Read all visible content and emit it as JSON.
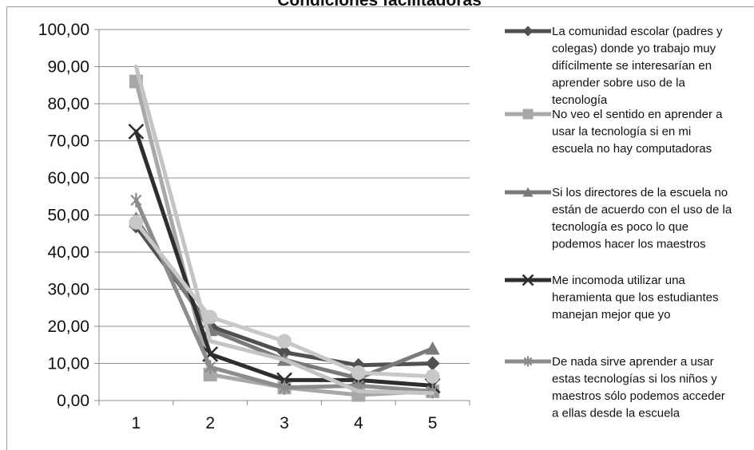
{
  "chart_data": {
    "type": "line",
    "title": "Condiciones facilitadoras",
    "categories": [
      "1",
      "2",
      "3",
      "4",
      "5"
    ],
    "ylim": [
      0,
      100
    ],
    "yticks": [
      "0,00",
      "10,00",
      "20,00",
      "30,00",
      "40,00",
      "50,00",
      "60,00",
      "70,00",
      "80,00",
      "90,00",
      "100,00"
    ],
    "grid": true,
    "legend_position": "right",
    "series": [
      {
        "name": "La comunidad escolar (padres y colegas) donde yo trabajo muy difícilmente se interesarían en aprender sobre uso de la tecnología",
        "legend_lines": [
          "La comunidad escolar (padres y",
          "colegas) donde yo trabajo muy",
          "difícilmente se interesarían en",
          "aprender sobre uso de la",
          "tecnología"
        ],
        "marker": "diamond",
        "color": "#505050",
        "values": [
          47,
          20,
          13,
          9.5,
          10
        ]
      },
      {
        "name": "No veo el sentido en aprender a usar la tecnología si en mi escuela no hay computadoras",
        "legend_lines": [
          "No veo el sentido en aprender a",
          "usar la tecnología si en mi",
          "escuela no hay computadoras"
        ],
        "marker": "square",
        "color": "#a8a8a8",
        "values": [
          86,
          7,
          3.5,
          1.5,
          2.5
        ]
      },
      {
        "name": "Si los directores de la escuela no están de acuerdo con el uso de la tecnología es poco lo que podemos hacer los maestros",
        "legend_lines": [
          "Si los directores de la escuela no",
          "están de acuerdo con el uso de la",
          "tecnología es poco lo que",
          "podemos hacer los maestros"
        ],
        "marker": "triangle",
        "color": "#7a7a7a",
        "values": [
          49,
          19,
          11,
          6,
          14
        ]
      },
      {
        "name": "Me incomoda utilizar una heramienta que los estudiantes manejan mejor que yo",
        "legend_lines": [
          "Me incomoda utilizar una",
          "heramienta que los estudiantes",
          "manejan mejor que yo"
        ],
        "marker": "x",
        "color": "#2e2e2e",
        "values": [
          72.5,
          12.5,
          5.5,
          5.5,
          4
        ]
      },
      {
        "name": "De nada sirve aprender a usar estas tecnologías si los niños y maestros sólo podemos acceder a ellas desde la escuela",
        "legend_lines": [
          "De nada sirve aprender a usar",
          "estas tecnologías si los niños y",
          "maestros sólo podemos acceder",
          "a ellas desde la escuela"
        ],
        "marker": "star",
        "color": "#8c8c8c",
        "values": [
          54,
          9,
          3.5,
          4,
          2.5
        ]
      },
      {
        "name": "",
        "legend_lines": [],
        "marker": "none",
        "color": "#c4c4c4",
        "values": [
          90,
          16,
          11,
          2.5,
          2
        ]
      },
      {
        "name": "",
        "legend_lines": [],
        "marker": "circle",
        "color": "#c8c8c8",
        "values": [
          48,
          22.5,
          16,
          7.5,
          6.5
        ]
      }
    ]
  }
}
